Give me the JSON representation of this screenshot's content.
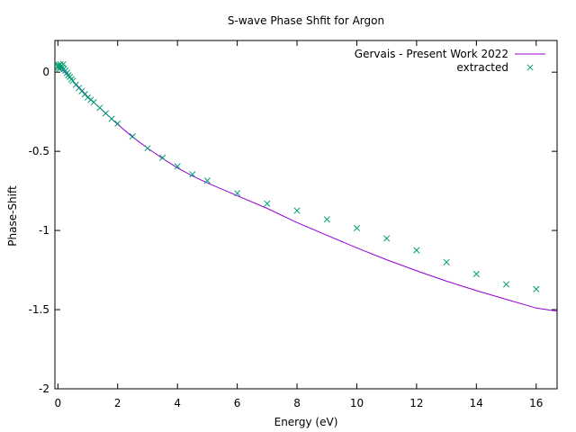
{
  "chart_data": {
    "type": "scatter",
    "title": "S-wave Phase Shfit for Argon",
    "xlabel": "Energy (eV)",
    "ylabel": "Phase-Shift",
    "xlim": [
      -0.1,
      16.7
    ],
    "ylim": [
      -2,
      0.2
    ],
    "xticks": [
      0,
      2,
      4,
      6,
      8,
      10,
      12,
      14,
      16
    ],
    "yticks": [
      0,
      -0.5,
      -1,
      -1.5,
      -2
    ],
    "xtick_labels": [
      "0",
      "2",
      "4",
      "6",
      "8",
      "10",
      "12",
      "14",
      "16"
    ],
    "ytick_labels": [
      "0",
      "-0.5",
      "-1",
      "-1.5",
      "-2"
    ],
    "grid": false,
    "legend_position": "top-right",
    "series": [
      {
        "name": "Gervais - Present Work 2022",
        "style": "line",
        "color": "#9400d3",
        "x": [
          0,
          0.05,
          0.1,
          0.2,
          0.3,
          0.4,
          0.5,
          0.6,
          0.7,
          0.8,
          0.9,
          1.0,
          1.2,
          1.4,
          1.6,
          1.8,
          2.0,
          2.5,
          3.0,
          3.5,
          4.0,
          4.5,
          5.0,
          6.0,
          7.0,
          8.0,
          9.0,
          10.0,
          11.0,
          12.0,
          13.0,
          14.0,
          15.0,
          16.0,
          16.7
        ],
        "y": [
          0.04,
          0.035,
          0.03,
          0.005,
          -0.015,
          -0.035,
          -0.055,
          -0.075,
          -0.095,
          -0.115,
          -0.135,
          -0.155,
          -0.19,
          -0.225,
          -0.26,
          -0.295,
          -0.33,
          -0.41,
          -0.48,
          -0.545,
          -0.605,
          -0.655,
          -0.7,
          -0.78,
          -0.86,
          -0.95,
          -1.03,
          -1.11,
          -1.185,
          -1.255,
          -1.32,
          -1.38,
          -1.435,
          -1.49,
          -1.51
        ]
      },
      {
        "name": "extracted",
        "style": "points",
        "color": "#009e73",
        "x": [
          0.01,
          0.02,
          0.03,
          0.05,
          0.08,
          0.1,
          0.12,
          0.15,
          0.18,
          0.2,
          0.25,
          0.3,
          0.35,
          0.4,
          0.45,
          0.5,
          0.6,
          0.7,
          0.8,
          0.9,
          1.0,
          1.1,
          1.2,
          1.4,
          1.6,
          1.8,
          2.0,
          2.5,
          3.0,
          3.5,
          4.0,
          4.5,
          5.0,
          6.0,
          7.0,
          8.0,
          9.0,
          10.0,
          11.0,
          12.0,
          13.0,
          14.0,
          15.0,
          16.0
        ],
        "y": [
          0.04,
          0.03,
          0.045,
          0.02,
          0.05,
          0.035,
          0.04,
          0.03,
          0.05,
          0.02,
          0.01,
          -0.005,
          -0.02,
          -0.03,
          -0.045,
          -0.055,
          -0.08,
          -0.1,
          -0.12,
          -0.14,
          -0.16,
          -0.175,
          -0.19,
          -0.225,
          -0.26,
          -0.295,
          -0.325,
          -0.405,
          -0.48,
          -0.54,
          -0.595,
          -0.645,
          -0.685,
          -0.765,
          -0.83,
          -0.875,
          -0.93,
          -0.985,
          -1.05,
          -1.125,
          -1.2,
          -1.275,
          -1.34,
          -1.37
        ]
      }
    ]
  }
}
